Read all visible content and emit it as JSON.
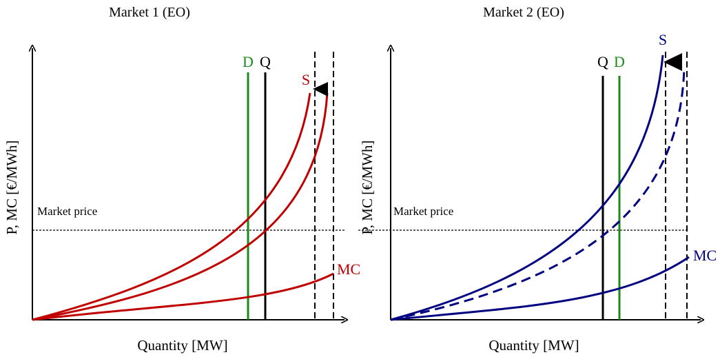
{
  "panels": [
    {
      "title": "Market 1 (EO)",
      "y_axis_label": "P, MC [€/MWh]",
      "x_axis_label": "Quantity  [MW]",
      "price_label": "Market price",
      "labels": {
        "demand": "D",
        "quantity": "Q",
        "supply": "S",
        "marginal_cost": "MC"
      },
      "color": "#c00000",
      "demand_color": "#1a8a1a"
    },
    {
      "title": "Market 2 (EO)",
      "y_axis_label": "P, MC [€/MWh]",
      "x_axis_label": "Quantity  [MW]",
      "price_label": "Market price",
      "labels": {
        "demand": "D",
        "quantity": "Q",
        "supply": "S",
        "marginal_cost": "MC"
      },
      "color": "#000080",
      "demand_color": "#1a8a1a"
    }
  ]
}
